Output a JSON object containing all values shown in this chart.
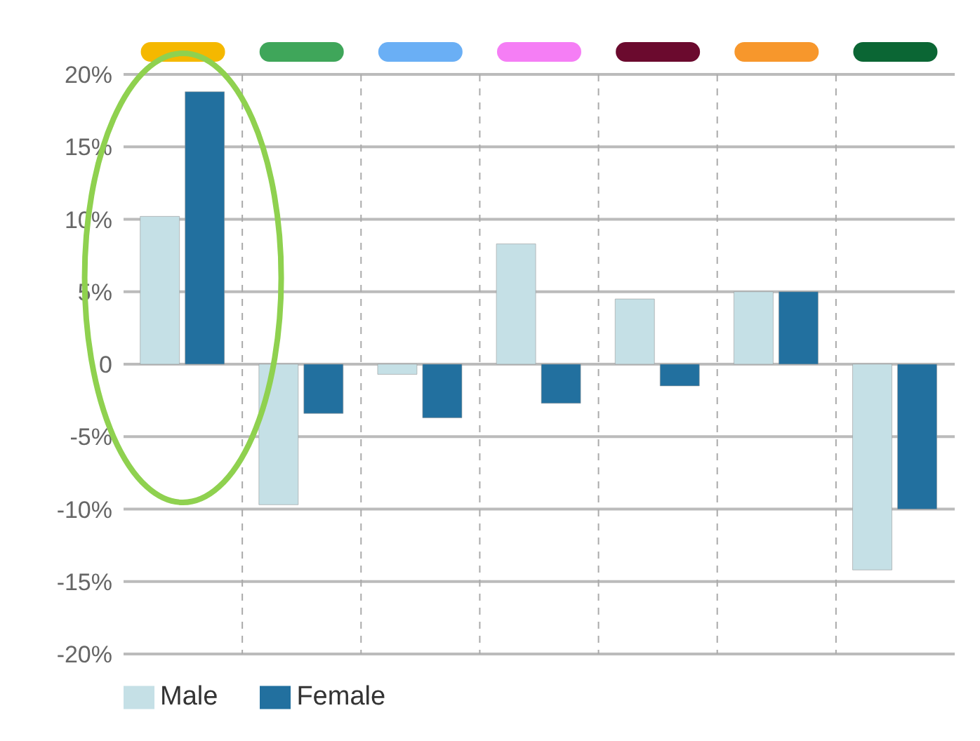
{
  "chart_data": {
    "type": "bar",
    "categories": [
      null,
      null,
      null,
      null,
      null,
      null,
      null
    ],
    "series": [
      {
        "name": "Male",
        "color": "#c5e0e6",
        "values": [
          10.2,
          -9.7,
          -0.7,
          8.3,
          4.5,
          5.0,
          -14.2
        ]
      },
      {
        "name": "Female",
        "color": "#22709f",
        "values": [
          18.8,
          -3.4,
          -3.7,
          -2.7,
          -1.5,
          5.0,
          -10.0
        ]
      }
    ],
    "ylim": [
      -20,
      20
    ],
    "yticks": [
      {
        "value": -20,
        "label": "-20%"
      },
      {
        "value": -15,
        "label": "-15%"
      },
      {
        "value": -10,
        "label": "-10%"
      },
      {
        "value": -5,
        "label": "-5%"
      },
      {
        "value": 0,
        "label": "0"
      },
      {
        "value": 5,
        "label": "5%"
      },
      {
        "value": 10,
        "label": "10%"
      },
      {
        "value": 15,
        "label": "15%"
      },
      {
        "value": 20,
        "label": "20%"
      }
    ],
    "grid": true,
    "legend": "bottom left"
  }
}
